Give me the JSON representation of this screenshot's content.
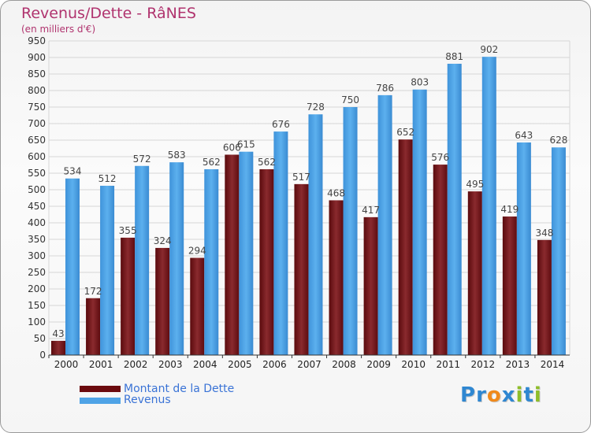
{
  "title": "Revenus/Dette - RâNES",
  "subtitle": "(en milliers d'€)",
  "legend": [
    {
      "label": "Montant de la Dette",
      "color": "#6b0a0e"
    },
    {
      "label": "Revenus",
      "color": "#4fa3e6"
    }
  ],
  "logo": {
    "text": "Proxiti",
    "letters": [
      {
        "char": "P",
        "color": "#2f87d1"
      },
      {
        "char": "r",
        "color": "#2f87d1"
      },
      {
        "char": "o",
        "color": "#f08a1c"
      },
      {
        "char": "x",
        "color": "#2f87d1"
      },
      {
        "char": "i",
        "color": "#8fbe2a"
      },
      {
        "char": "t",
        "color": "#2f87d1"
      },
      {
        "char": "i",
        "color": "#8fbe2a"
      }
    ]
  },
  "chart_data": {
    "type": "bar",
    "categories": [
      "2000",
      "2001",
      "2002",
      "2003",
      "2004",
      "2005",
      "2006",
      "2007",
      "2008",
      "2009",
      "2010",
      "2011",
      "2012",
      "2013",
      "2014"
    ],
    "series": [
      {
        "name": "Montant de la Dette",
        "color": "#7a1a1f",
        "values": [
          43,
          172,
          355,
          324,
          294,
          606,
          562,
          517,
          468,
          417,
          652,
          576,
          495,
          419,
          348
        ]
      },
      {
        "name": "Revenus",
        "color": "#4fa3e6",
        "values": [
          534,
          512,
          572,
          583,
          562,
          615,
          676,
          728,
          750,
          786,
          803,
          881,
          902,
          643,
          628
        ]
      }
    ],
    "ylim": [
      0,
      950
    ],
    "ytick_step": 50,
    "grid": true
  }
}
